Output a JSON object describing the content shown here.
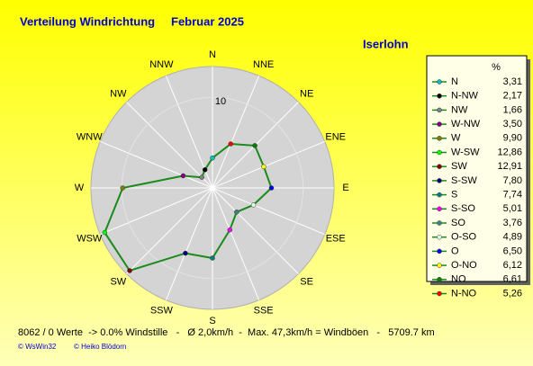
{
  "chart_data": {
    "type": "radar",
    "title": "Verteilung Windrichtung",
    "subtitle": "Februar 2025",
    "location": "Iserlohn",
    "direction": "counterclockwise",
    "categories": [
      "N",
      "NNW",
      "NW",
      "WNW",
      "W",
      "WSW",
      "SW",
      "SSW",
      "S",
      "SSE",
      "SE",
      "ESE",
      "E",
      "ENE",
      "NE",
      "NNE"
    ],
    "legend_labels": [
      "N",
      "N-NW",
      "NW",
      "W-NW",
      "W",
      "W-SW",
      "SW",
      "S-SW",
      "S",
      "S-SO",
      "SO",
      "O-SO",
      "O",
      "O-NO",
      "NO",
      "N-NO"
    ],
    "values": [
      3.31,
      2.17,
      1.66,
      3.5,
      9.9,
      12.86,
      12.91,
      7.8,
      7.74,
      5.01,
      3.76,
      4.89,
      6.5,
      6.12,
      6.61,
      5.26
    ],
    "value_labels": [
      "3,31",
      "2,17",
      "1,66",
      "3,50",
      "9,90",
      "12,86",
      "12,91",
      "7,80",
      "7,74",
      "5,01",
      "3,76",
      "4,89",
      "6,50",
      "6,12",
      "6,61",
      "5,26"
    ],
    "point_colors": [
      "#00c0c0",
      "#000000",
      "#808080",
      "#800080",
      "#808000",
      "#00ff00",
      "#800000",
      "#000080",
      "#008080",
      "#ff00ff",
      "#408080",
      "#e0ffe0",
      "#0000ff",
      "#ffff00",
      "#008000",
      "#ff0000"
    ],
    "color": "#1a8a1a",
    "value_header": "%",
    "rlim": [
      0,
      13.4
    ],
    "rticks": [
      10
    ]
  },
  "footer": "8062 / 0 Werte  -> 0.0% Windstille   -   Ø 2,0km/h  -  Max. 47,3km/h = Windböen   -   5709.7 km",
  "credits": [
    "© WsWin32",
    "© Heiko Blödorn"
  ]
}
